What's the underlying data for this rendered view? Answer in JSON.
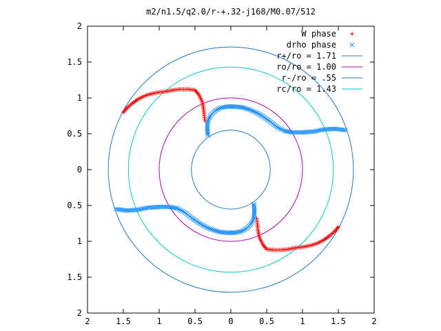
{
  "chart_data": {
    "type": "scatter",
    "title": "m2/n1.5/q2.0/r-+.32-j168/M0.07/512",
    "xlabel": "",
    "ylabel": "",
    "xlim": [
      -2,
      2
    ],
    "ylim": [
      -2,
      2
    ],
    "xticks": [
      "2",
      "1.5",
      "1",
      "0.5",
      "0",
      "0.5",
      "1",
      "1.5",
      "2"
    ],
    "yticks": [
      "2",
      "1.5",
      "1",
      "0.5",
      "0",
      "0.5",
      "1",
      "1.5",
      "2"
    ],
    "grid": false,
    "legend_position": "top-right",
    "colors": {
      "w_phase": "#ff0000",
      "drho_phase": "#1e90ff",
      "r_plus": "#1e78c8",
      "ro": "#b000b0",
      "r_minus": "#1e78c8",
      "rc": "#00c8c8"
    },
    "circles": [
      {
        "name": "r+/ro = 1.71",
        "r": 1.71,
        "color_key": "r_plus"
      },
      {
        "name": "ro/ro = 1.00",
        "r": 1.0,
        "color_key": "ro"
      },
      {
        "name": "r-/ro = .55",
        "r": 0.55,
        "color_key": "r_minus"
      },
      {
        "name": "rc/ro = 1.43",
        "r": 1.43,
        "color_key": "rc"
      }
    ],
    "series": [
      {
        "name": "W phase",
        "marker": "plus",
        "color_key": "w_phase",
        "points": [
          [
            -1.5,
            0.8
          ],
          [
            -1.45,
            0.86
          ],
          [
            -1.38,
            0.92
          ],
          [
            -1.3,
            0.98
          ],
          [
            -1.2,
            1.03
          ],
          [
            -1.1,
            1.06
          ],
          [
            -1.0,
            1.08
          ],
          [
            -0.9,
            1.09
          ],
          [
            -0.8,
            1.11
          ],
          [
            -0.7,
            1.12
          ],
          [
            -0.6,
            1.12
          ],
          [
            -0.5,
            1.11
          ],
          [
            -0.45,
            1.05
          ],
          [
            -0.4,
            0.95
          ],
          [
            -0.38,
            0.85
          ],
          [
            -0.37,
            0.75
          ],
          [
            -0.36,
            0.68
          ],
          [
            1.5,
            -0.8
          ],
          [
            1.45,
            -0.86
          ],
          [
            1.38,
            -0.92
          ],
          [
            1.3,
            -0.98
          ],
          [
            1.2,
            -1.03
          ],
          [
            1.1,
            -1.06
          ],
          [
            1.0,
            -1.08
          ],
          [
            0.9,
            -1.09
          ],
          [
            0.8,
            -1.11
          ],
          [
            0.7,
            -1.12
          ],
          [
            0.6,
            -1.12
          ],
          [
            0.5,
            -1.11
          ],
          [
            0.45,
            -1.05
          ],
          [
            0.4,
            -0.95
          ],
          [
            0.38,
            -0.85
          ],
          [
            0.37,
            -0.75
          ],
          [
            0.36,
            -0.68
          ]
        ]
      },
      {
        "name": "drho phase",
        "marker": "cross",
        "color_key": "drho_phase",
        "points": [
          [
            -0.32,
            0.48
          ],
          [
            -0.33,
            0.58
          ],
          [
            -0.32,
            0.68
          ],
          [
            -0.28,
            0.76
          ],
          [
            -0.22,
            0.82
          ],
          [
            -0.15,
            0.86
          ],
          [
            -0.05,
            0.88
          ],
          [
            0.05,
            0.88
          ],
          [
            0.15,
            0.87
          ],
          [
            0.25,
            0.84
          ],
          [
            0.35,
            0.8
          ],
          [
            0.45,
            0.74
          ],
          [
            0.55,
            0.67
          ],
          [
            0.65,
            0.59
          ],
          [
            0.75,
            0.54
          ],
          [
            0.85,
            0.52
          ],
          [
            1.0,
            0.52
          ],
          [
            1.15,
            0.53
          ],
          [
            1.3,
            0.56
          ],
          [
            1.45,
            0.57
          ],
          [
            1.6,
            0.55
          ],
          [
            0.32,
            -0.48
          ],
          [
            0.33,
            -0.58
          ],
          [
            0.32,
            -0.68
          ],
          [
            0.28,
            -0.76
          ],
          [
            0.22,
            -0.82
          ],
          [
            0.15,
            -0.86
          ],
          [
            0.05,
            -0.88
          ],
          [
            -0.05,
            -0.88
          ],
          [
            -0.15,
            -0.87
          ],
          [
            -0.25,
            -0.84
          ],
          [
            -0.35,
            -0.8
          ],
          [
            -0.45,
            -0.74
          ],
          [
            -0.55,
            -0.67
          ],
          [
            -0.65,
            -0.59
          ],
          [
            -0.75,
            -0.54
          ],
          [
            -0.85,
            -0.52
          ],
          [
            -1.0,
            -0.52
          ],
          [
            -1.15,
            -0.53
          ],
          [
            -1.3,
            -0.56
          ],
          [
            -1.45,
            -0.57
          ],
          [
            -1.6,
            -0.55
          ]
        ]
      }
    ]
  }
}
